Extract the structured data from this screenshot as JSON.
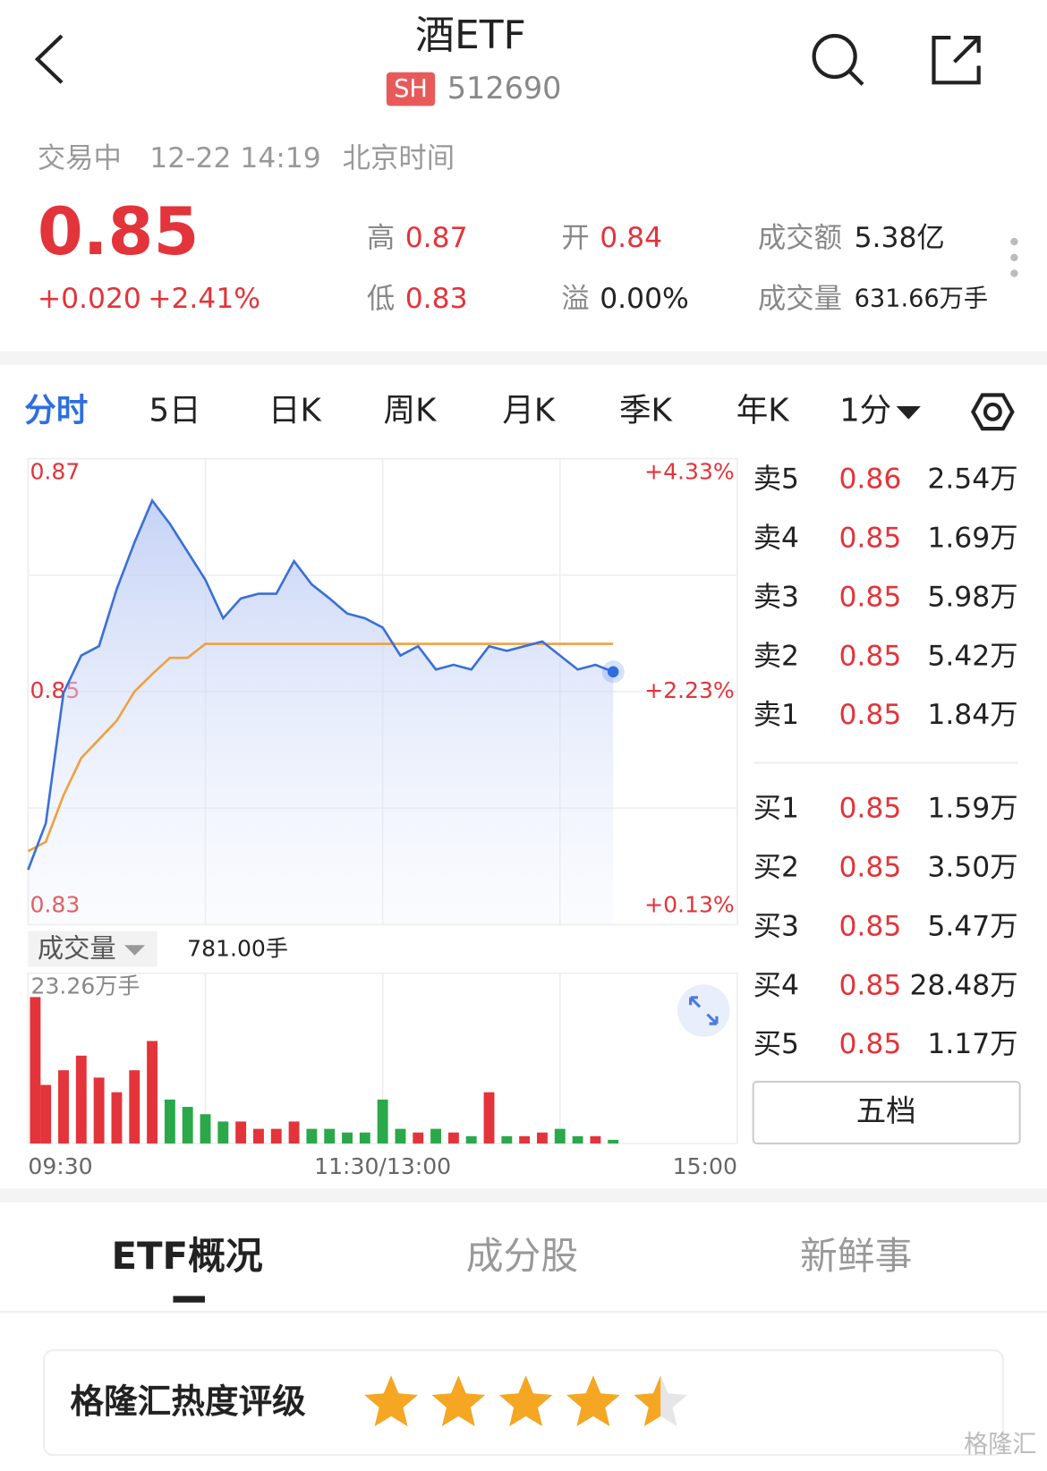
{
  "header": {
    "title": "酒ETF",
    "exchange": "SH",
    "code": "512690"
  },
  "status": {
    "state": "交易中",
    "time": "12-22 14:19",
    "zone": "北京时间"
  },
  "quote": {
    "price": "0.85",
    "change": "+0.020",
    "change_pct": "+2.41%",
    "stats": [
      {
        "label": "高",
        "value": "0.87"
      },
      {
        "label": "低",
        "value": "0.83"
      },
      {
        "label": "开",
        "value": "0.84"
      },
      {
        "label": "溢",
        "value": "0.00%"
      },
      {
        "label": "成交额",
        "value": "5.38亿"
      },
      {
        "label": "成交量",
        "value": "631.66万手"
      }
    ]
  },
  "tabs": [
    "分时",
    "5日",
    "日K",
    "周K",
    "月K",
    "季K",
    "年K",
    "1分"
  ],
  "chart_data": [
    {
      "type": "line",
      "xlim": [
        0,
        240
      ],
      "xticks": [
        {
          "value": 0,
          "label": "09:30"
        },
        {
          "value": 120,
          "label": "11:30/13:00"
        },
        {
          "value": 240,
          "label": "15:00"
        }
      ],
      "ylim": [
        0.83,
        0.87
      ],
      "yticks": [
        0.87,
        0.85,
        0.83
      ],
      "y2lim": [
        0.13,
        4.33
      ],
      "y2ticks": [
        {
          "value": 4.33,
          "label": "+4.33%"
        },
        {
          "value": 2.23,
          "label": "+2.23%"
        },
        {
          "value": 0.13,
          "label": "+0.13%"
        }
      ],
      "grid": true,
      "x": [
        0,
        6,
        12,
        18,
        24,
        30,
        36,
        42,
        48,
        54,
        60,
        66,
        72,
        78,
        84,
        90,
        96,
        102,
        108,
        114,
        120,
        126,
        132,
        138,
        144,
        150,
        156,
        162,
        168,
        174,
        180,
        186,
        192,
        198
      ],
      "series": [
        {
          "color": "#3a6fd8",
          "values": [
            0.8347,
            0.8387,
            0.8499,
            0.8531,
            0.8539,
            0.8588,
            0.8628,
            0.8664,
            0.8644,
            0.862,
            0.8596,
            0.8563,
            0.858,
            0.8584,
            0.8584,
            0.8612,
            0.8592,
            0.858,
            0.8567,
            0.8563,
            0.8555,
            0.8531,
            0.8539,
            0.8519,
            0.8523,
            0.8519,
            0.8539,
            0.8535,
            0.8539,
            0.8543,
            0.8531,
            0.8519,
            0.8523,
            0.8517
          ]
        },
        {
          "color": "#f0a040",
          "values": [
            0.8363,
            0.8371,
            0.8411,
            0.8443,
            0.8459,
            0.8475,
            0.85,
            0.8515,
            0.8529,
            0.8529,
            0.8541,
            0.8541,
            0.8541,
            0.8541,
            0.8541,
            0.8541,
            0.8541,
            0.8541,
            0.8541,
            0.8541,
            0.8541,
            0.8541,
            0.8541,
            0.8541,
            0.8541,
            0.8541,
            0.8541,
            0.8541,
            0.8541,
            0.8541,
            0.8541,
            0.8541,
            0.8541,
            0.8541
          ]
        }
      ]
    },
    {
      "type": "bar",
      "title": "成交量",
      "subtitle": "781.00手",
      "ylim": [
        0,
        23.26
      ],
      "yticks": [
        {
          "value": 23.26,
          "label": "23.26万手"
        }
      ],
      "x": [
        0,
        6,
        12,
        18,
        24,
        30,
        36,
        42,
        48,
        54,
        60,
        66,
        72,
        78,
        84,
        90,
        96,
        102,
        108,
        114,
        120,
        126,
        132,
        138,
        144,
        150,
        156,
        162,
        168,
        174,
        180,
        186,
        192,
        198
      ],
      "values": [
        20,
        8,
        10,
        12,
        9,
        7,
        10,
        14,
        6,
        5,
        4,
        3,
        3,
        2,
        2,
        3,
        2,
        2,
        1.5,
        1.5,
        6,
        2,
        1.5,
        2,
        1.5,
        1,
        7,
        1,
        1,
        1.5,
        2,
        1,
        1,
        0.5
      ]
    }
  ],
  "order_book": {
    "sell": [
      {
        "label": "卖5",
        "price": "0.86",
        "volume": "2.54万"
      },
      {
        "label": "卖4",
        "price": "0.85",
        "volume": "1.69万"
      },
      {
        "label": "卖3",
        "price": "0.85",
        "volume": "5.98万"
      },
      {
        "label": "卖2",
        "price": "0.85",
        "volume": "5.42万"
      },
      {
        "label": "卖1",
        "price": "0.85",
        "volume": "1.84万"
      }
    ],
    "buy": [
      {
        "label": "买1",
        "price": "0.85",
        "volume": "1.59万"
      },
      {
        "label": "买2",
        "price": "0.85",
        "volume": "3.50万"
      },
      {
        "label": "买3",
        "price": "0.85",
        "volume": "5.47万"
      },
      {
        "label": "买4",
        "price": "0.85",
        "volume": "28.48万"
      },
      {
        "label": "买5",
        "price": "0.85",
        "volume": "1.17万"
      }
    ],
    "button": "五档"
  },
  "bottom_tabs": [
    "ETF概况",
    "成分股",
    "新鲜事"
  ],
  "rating": {
    "label": "格隆汇热度评级",
    "value": 4.5
  },
  "watermark": "格隆汇"
}
